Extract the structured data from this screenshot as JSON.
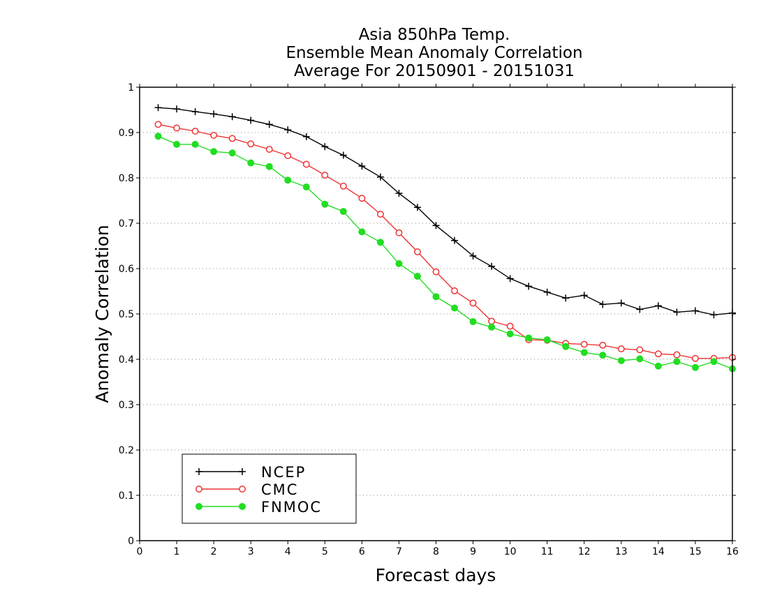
{
  "chart_data": {
    "type": "line",
    "title": [
      "Asia 850hPa Temp.",
      "Ensemble Mean Anomaly Correlation",
      "Average For 20150901 - 20151031"
    ],
    "xlabel": "Forecast days",
    "ylabel": "Anomaly Correlation",
    "xlim": [
      0,
      16
    ],
    "ylim": [
      0,
      1
    ],
    "xticks": [
      "0",
      "1",
      "2",
      "3",
      "4",
      "5",
      "6",
      "7",
      "8",
      "9",
      "10",
      "11",
      "12",
      "13",
      "14",
      "15",
      "16"
    ],
    "yticks": [
      "0",
      "0.1",
      "0.2",
      "0.3",
      "0.4",
      "0.5",
      "0.6",
      "0.7",
      "0.8",
      "0.9",
      "1"
    ],
    "grid": "horizontal dotted",
    "legend_position": "bottom-left",
    "x": [
      0.5,
      1,
      1.5,
      2,
      2.5,
      3,
      3.5,
      4,
      4.5,
      5,
      5.5,
      6,
      6.5,
      7,
      7.5,
      8,
      8.5,
      9,
      9.5,
      10,
      10.5,
      11,
      11.5,
      12,
      12.5,
      13,
      13.5,
      14,
      14.5,
      15,
      15.5,
      16
    ],
    "series": [
      {
        "name": "NCEP",
        "color": "#000000",
        "marker": "plus",
        "values": [
          0.955,
          0.952,
          0.946,
          0.941,
          0.935,
          0.927,
          0.918,
          0.906,
          0.891,
          0.869,
          0.85,
          0.826,
          0.802,
          0.766,
          0.735,
          0.695,
          0.662,
          0.628,
          0.605,
          0.578,
          0.561,
          0.548,
          0.535,
          0.541,
          0.521,
          0.524,
          0.51,
          0.518,
          0.504,
          0.507,
          0.498,
          0.502
        ]
      },
      {
        "name": "CMC",
        "color": "#ee3333",
        "marker": "open-circle",
        "values": [
          0.918,
          0.91,
          0.903,
          0.894,
          0.887,
          0.875,
          0.863,
          0.849,
          0.83,
          0.806,
          0.782,
          0.755,
          0.72,
          0.679,
          0.637,
          0.593,
          0.551,
          0.524,
          0.484,
          0.473,
          0.443,
          0.442,
          0.435,
          0.433,
          0.431,
          0.423,
          0.421,
          0.412,
          0.41,
          0.402,
          0.402,
          0.404
        ]
      },
      {
        "name": "FNMOC",
        "color": "#22dd22",
        "marker": "filled-circle",
        "values": [
          0.892,
          0.874,
          0.874,
          0.858,
          0.855,
          0.833,
          0.825,
          0.795,
          0.78,
          0.742,
          0.726,
          0.681,
          0.658,
          0.611,
          0.583,
          0.538,
          0.513,
          0.483,
          0.471,
          0.456,
          0.447,
          0.443,
          0.428,
          0.415,
          0.409,
          0.397,
          0.401,
          0.385,
          0.395,
          0.382,
          0.395,
          0.379
        ]
      }
    ]
  }
}
